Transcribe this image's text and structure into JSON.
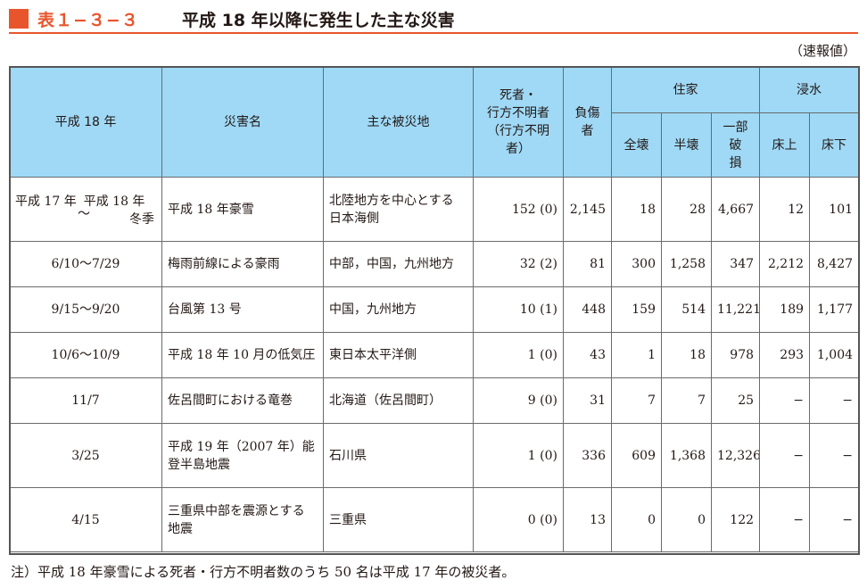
{
  "title": {
    "number": "表１−３−３",
    "text": "平成 18 年以降に発生した主な災害"
  },
  "status_note": "（速報値）",
  "columns": {
    "period": "平成 18 年",
    "disaster_name": "災害名",
    "main_area": "主な被災地",
    "dead_missing_line1": "死者・",
    "dead_missing_line2": "行方不明者",
    "dead_missing_line3": "（行方不明者）",
    "injured": "負傷者",
    "houses": "住家",
    "total_collapse": "全壊",
    "half_collapse": "半壊",
    "partial_line1": "一部破",
    "partial_line2": "損",
    "flooding": "浸水",
    "above_floor": "床上",
    "below_floor": "床下"
  },
  "rows": [
    {
      "period_line1": "平成 17 年",
      "period_wave": "～",
      "period_line1b": "平成 18 年",
      "period_line2": "冬季",
      "name": "平成 18 年豪雪",
      "area_line1": "北陸地方を中心とする",
      "area_line2": "日本海側",
      "dead": "152 (0)",
      "injured": "2,145",
      "total": "18",
      "half": "28",
      "partial": "4,667",
      "above": "12",
      "below": "101"
    },
    {
      "period": "6/10～7/29",
      "name": "梅雨前線による豪雨",
      "area": "中部，中国，九州地方",
      "dead": "32 (2)",
      "injured": "81",
      "total": "300",
      "half": "1,258",
      "partial": "347",
      "above": "2,212",
      "below": "8,427"
    },
    {
      "period": "9/15～9/20",
      "name": "台風第 13 号",
      "area": "中国，九州地方",
      "dead": "10 (1)",
      "injured": "448",
      "total": "159",
      "half": "514",
      "partial": "11,221",
      "above": "189",
      "below": "1,177"
    },
    {
      "period": "10/6～10/9",
      "name": "平成 18 年 10 月の低気圧",
      "area": "東日本太平洋側",
      "dead": "1 (0)",
      "injured": "43",
      "total": "1",
      "half": "18",
      "partial": "978",
      "above": "293",
      "below": "1,004"
    },
    {
      "period": "11/7",
      "name": "佐呂間町における竜巻",
      "area": "北海道（佐呂間町）",
      "dead": "9 (0)",
      "injured": "31",
      "total": "7",
      "half": "7",
      "partial": "25",
      "above": "−",
      "below": "−"
    },
    {
      "period": "3/25",
      "name_line1": "平成 19 年（2007 年）能",
      "name_line2": "登半島地震",
      "area": "石川県",
      "dead": "1 (0)",
      "injured": "336",
      "total": "609",
      "half": "1,368",
      "partial": "12,326",
      "above": "−",
      "below": "−"
    },
    {
      "period": "4/15",
      "name_line1": "三重県中部を震源とする",
      "name_line2": "地震",
      "area": "三重県",
      "dead": "0 (0)",
      "injured": "13",
      "total": "0",
      "half": "0",
      "partial": "122",
      "above": "−",
      "below": "−"
    }
  ],
  "footnote": "注）平成 18 年豪雪による死者・行方不明者数のうち 50 名は平成 17 年の被災者。",
  "colors": {
    "accent": "#e8552d",
    "header_bg": "#9fd9f6",
    "border": "#6b6b6b"
  }
}
